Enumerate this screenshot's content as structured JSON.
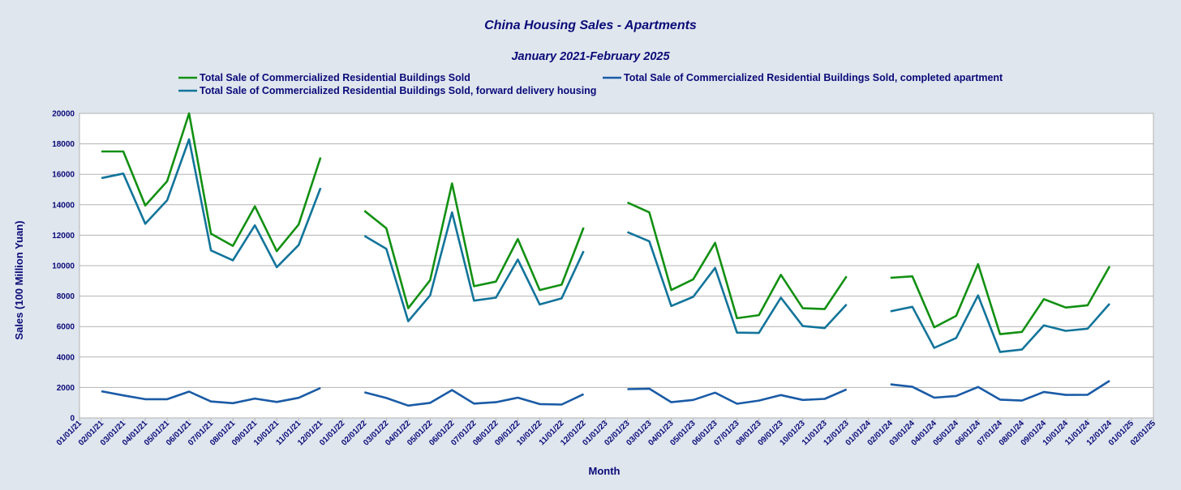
{
  "chart_data": {
    "type": "line",
    "title": "China Housing Sales - Apartments",
    "subtitle": "January 2021-February 2025",
    "xlabel": "Month",
    "ylabel": "Sales (100 Million Yuan)",
    "ylim": [
      0,
      20000
    ],
    "yticks": [
      0,
      2000,
      4000,
      6000,
      8000,
      10000,
      12000,
      14000,
      16000,
      18000,
      20000
    ],
    "grid": "horizontal",
    "legend_position": "top",
    "categories": [
      "01/01/21",
      "02/01/21",
      "03/01/21",
      "04/01/21",
      "05/01/21",
      "06/01/21",
      "07/01/21",
      "08/01/21",
      "09/01/21",
      "10/01/21",
      "11/01/21",
      "12/01/21",
      "01/01/22",
      "02/01/22",
      "03/01/22",
      "04/01/22",
      "05/01/22",
      "06/01/22",
      "07/01/22",
      "08/01/22",
      "09/01/22",
      "10/01/22",
      "11/01/22",
      "12/01/22",
      "01/01/23",
      "02/01/23",
      "03/01/23",
      "04/01/23",
      "05/01/23",
      "06/01/23",
      "07/01/23",
      "08/01/23",
      "09/01/23",
      "10/01/23",
      "11/01/23",
      "12/01/23",
      "01/01/24",
      "02/01/24",
      "03/01/24",
      "04/01/24",
      "05/01/24",
      "06/01/24",
      "07/01/24",
      "08/01/24",
      "09/01/24",
      "10/01/24",
      "11/01/24",
      "12/01/24",
      "01/01/25",
      "02/01/25"
    ],
    "series": [
      {
        "name": "Total Sale of Commercialized Residential Buildings Sold",
        "color": "#129012",
        "values": [
          null,
          17500,
          17500,
          13950,
          15550,
          20000,
          12100,
          11300,
          13900,
          10950,
          12700,
          17100,
          null,
          13600,
          12450,
          7200,
          9050,
          15400,
          8650,
          8950,
          11750,
          8400,
          8750,
          12500,
          null,
          14150,
          13500,
          8400,
          9100,
          11500,
          6550,
          6750,
          9400,
          7200,
          7150,
          9300,
          null,
          9200,
          9300,
          5950,
          6700,
          10100,
          5500,
          5650,
          7800,
          7250,
          7400,
          9950,
          null,
          null
        ]
      },
      {
        "name": "Total Sale of Commercialized Residential Buildings Sold, completed apartment",
        "color": "#1a5ba6",
        "values": [
          null,
          1750,
          1480,
          1230,
          1230,
          1730,
          1080,
          970,
          1270,
          1050,
          1320,
          1970,
          null,
          1680,
          1310,
          810,
          990,
          1830,
          940,
          1030,
          1330,
          910,
          880,
          1560,
          null,
          1890,
          1920,
          1030,
          1180,
          1660,
          930,
          1140,
          1500,
          1180,
          1250,
          1870,
          null,
          2200,
          2040,
          1330,
          1440,
          2030,
          1200,
          1140,
          1710,
          1510,
          1520,
          2440,
          null,
          null
        ]
      },
      {
        "name": "Total Sale of Commercialized Residential Buildings Sold, forward delivery housing",
        "color": "#12749a",
        "values": [
          null,
          15750,
          16050,
          12750,
          14300,
          18300,
          11000,
          10350,
          12650,
          9900,
          11350,
          15100,
          null,
          11950,
          11100,
          6350,
          8050,
          13500,
          7700,
          7900,
          10400,
          7450,
          7850,
          10950,
          null,
          12200,
          11600,
          7350,
          7950,
          9850,
          5600,
          5580,
          7900,
          6030,
          5900,
          7450,
          null,
          7000,
          7300,
          4600,
          5250,
          8050,
          4330,
          4490,
          6080,
          5720,
          5860,
          7500,
          null,
          null
        ]
      }
    ]
  }
}
